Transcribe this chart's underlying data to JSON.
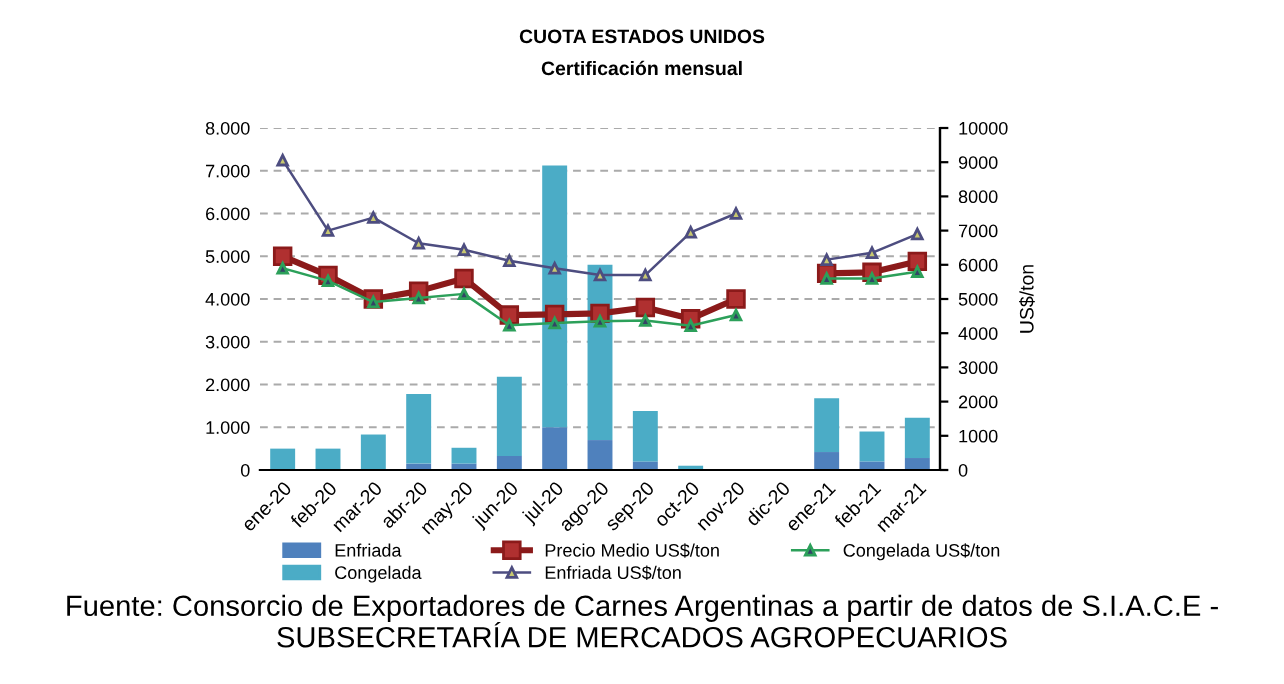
{
  "chart_data": {
    "type": "bar",
    "title": "CUOTA ESTADOS UNIDOS",
    "subtitle": "Certificación mensual",
    "y2label": "US$/ton",
    "categories": [
      "ene-20",
      "feb-20",
      "mar-20",
      "abr-20",
      "may-20",
      "jun-20",
      "jul-20",
      "ago-20",
      "sep-20",
      "oct-20",
      "nov-20",
      "dic-20",
      "ene-21",
      "feb-21",
      "mar-21"
    ],
    "stacked": true,
    "series": [
      {
        "name": "Enfriada",
        "color": "#4f81bd",
        "values": [
          0,
          0,
          0,
          150,
          150,
          330,
          1000,
          700,
          200,
          0,
          0,
          0,
          420,
          200,
          280
        ]
      },
      {
        "name": "Congelada",
        "color": "#4bacc6",
        "values": [
          500,
          500,
          830,
          1630,
          370,
          1850,
          6120,
          4100,
          1180,
          100,
          0,
          0,
          1260,
          700,
          940
        ]
      },
      {
        "name": "Precio Medio US$/ton",
        "type": "line",
        "axis": "y2",
        "marker": "square",
        "color": "#8b1a1a",
        "values": [
          6250,
          5690,
          5000,
          5230,
          5600,
          4530,
          4550,
          4580,
          4750,
          4420,
          5000,
          null,
          5750,
          5780,
          6100
        ]
      },
      {
        "name": "Enfriada US$/ton",
        "type": "line",
        "axis": "y2",
        "marker": "triangle",
        "color": "#4d4d80",
        "values": [
          9060,
          7000,
          7380,
          6630,
          6440,
          6120,
          5900,
          5700,
          5700,
          6950,
          7500,
          null,
          6150,
          6350,
          6900
        ]
      },
      {
        "name": "Congelada US$/ton",
        "type": "line",
        "axis": "y2",
        "marker": "triangle",
        "color": "#2ca05a",
        "values": [
          5900,
          5530,
          4910,
          5030,
          5150,
          4230,
          4300,
          4350,
          4370,
          4220,
          4530,
          null,
          5600,
          5600,
          5800
        ]
      }
    ],
    "ylim": [
      0,
      8000
    ],
    "yticks": [
      {
        "value": 0,
        "label": "0"
      },
      {
        "value": 1000,
        "label": "1.000"
      },
      {
        "value": 2000,
        "label": "2.000"
      },
      {
        "value": 3000,
        "label": "3.000"
      },
      {
        "value": 4000,
        "label": "4.000"
      },
      {
        "value": 5000,
        "label": "5.000"
      },
      {
        "value": 6000,
        "label": "6.000"
      },
      {
        "value": 7000,
        "label": "7.000"
      },
      {
        "value": 8000,
        "label": "8.000"
      }
    ],
    "y2lim": [
      0,
      10000
    ],
    "y2ticks": [
      0,
      1000,
      2000,
      3000,
      4000,
      5000,
      6000,
      7000,
      8000,
      9000,
      10000
    ],
    "grid": "y",
    "legend": "bottom",
    "annotations": [
      "Fuente: Consorcio de Exportadores de Carnes Argentinas a partir de datos de S.I.A.C.E - SUBSECRETARÍA DE MERCADOS AGROPECUARIOS"
    ]
  }
}
